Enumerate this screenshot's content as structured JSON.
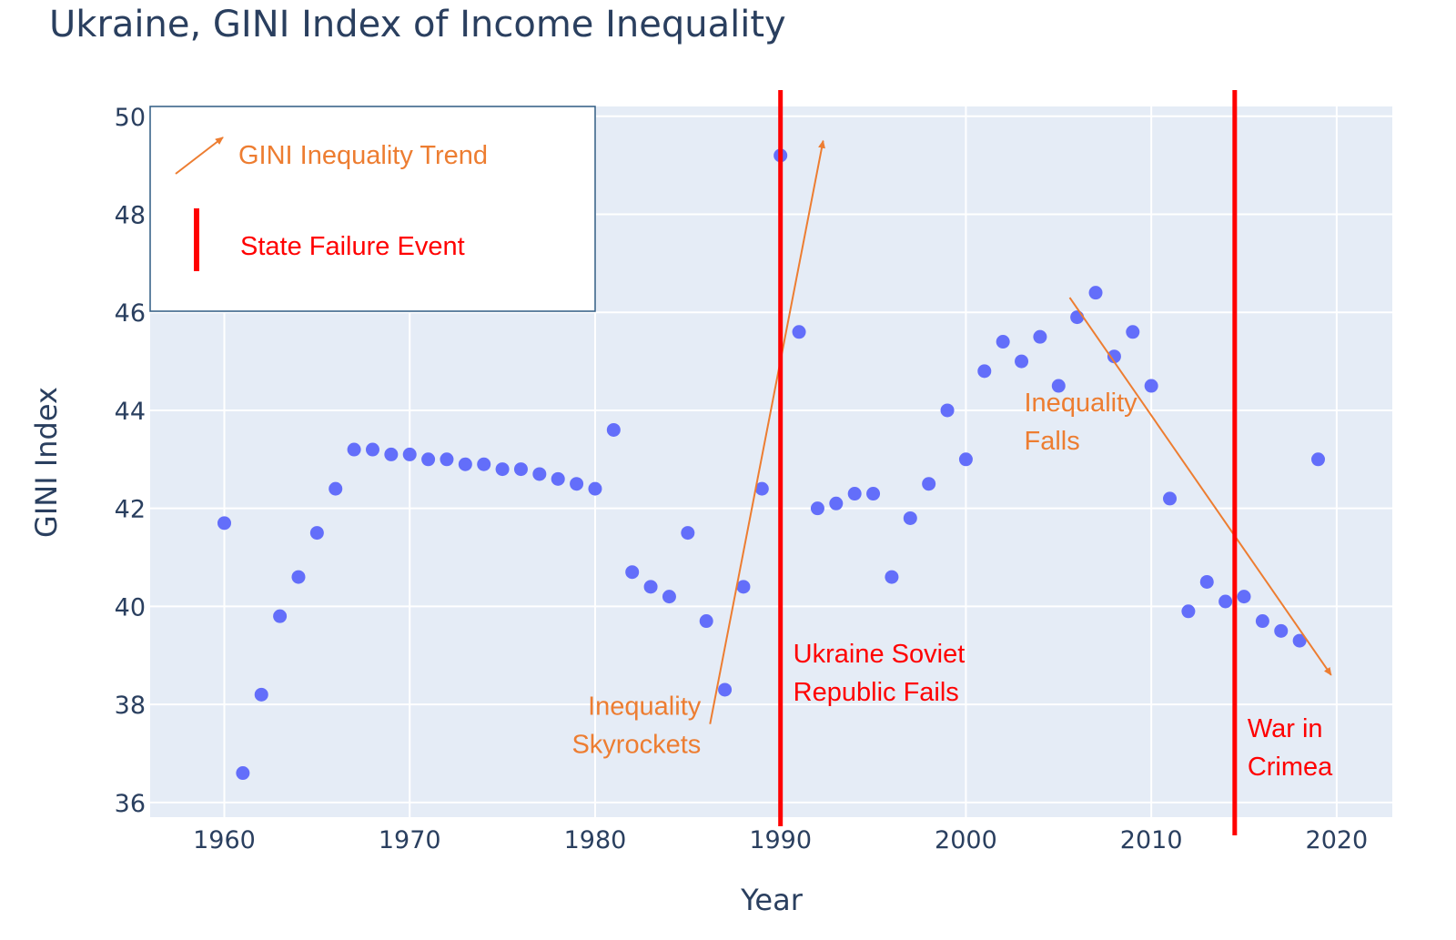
{
  "chart_data": {
    "type": "scatter",
    "title": "Ukraine, GINI Index of Income Inequality",
    "xlabel": "Year",
    "ylabel": "GINI Index",
    "xlim": [
      1956,
      2023
    ],
    "ylim": [
      35.7,
      50.2
    ],
    "x_ticks": [
      1960,
      1970,
      1980,
      1990,
      2000,
      2010,
      2020
    ],
    "y_ticks": [
      36,
      38,
      40,
      42,
      44,
      46,
      48,
      50
    ],
    "grid": true,
    "colors": {
      "marker": "#636efa",
      "plot_bg": "#e5ecf6",
      "trend": "#ed7d31",
      "event": "#ff0000",
      "text": "#2a3f5f"
    },
    "series": [
      {
        "x": [
          1960,
          1961,
          1962,
          1963,
          1964,
          1965,
          1966,
          1967,
          1968,
          1969,
          1970,
          1971,
          1972,
          1973,
          1974,
          1975,
          1976,
          1977,
          1978,
          1979,
          1980,
          1981,
          1982,
          1983,
          1984,
          1985,
          1986,
          1987,
          1988,
          1989,
          1990,
          1991,
          1992,
          1993,
          1994,
          1995,
          1996,
          1997,
          1998,
          1999,
          2000,
          2001,
          2002,
          2003,
          2004,
          2005,
          2006,
          2007,
          2008,
          2009,
          2010,
          2011,
          2012,
          2013,
          2014,
          2015,
          2016,
          2017,
          2018,
          2019
        ],
        "y": [
          41.7,
          36.6,
          38.2,
          39.8,
          40.6,
          41.5,
          42.4,
          43.2,
          43.2,
          43.1,
          43.1,
          43.0,
          43.0,
          42.9,
          42.9,
          42.8,
          42.8,
          42.7,
          42.6,
          42.5,
          42.4,
          43.6,
          40.7,
          40.4,
          40.2,
          41.5,
          39.7,
          38.3,
          40.4,
          42.4,
          49.2,
          45.6,
          42.0,
          42.1,
          42.3,
          42.3,
          40.6,
          41.8,
          42.5,
          44.0,
          43.0,
          44.8,
          45.4,
          45.0,
          45.5,
          44.5,
          45.9,
          46.4,
          45.1,
          45.6,
          44.5,
          42.2,
          39.9,
          40.5,
          40.1,
          40.2,
          39.7,
          39.5,
          39.3,
          43.0
        ]
      }
    ],
    "event_lines": [
      {
        "x": 1990.0,
        "label_lines": [
          "Ukraine Soviet",
          "Republic Fails"
        ]
      },
      {
        "x": 2014.5,
        "label_lines": [
          "War in",
          "Crimea"
        ]
      }
    ],
    "trend_arrows": [
      {
        "from": [
          1986.2,
          37.6
        ],
        "to": [
          1992.3,
          49.5
        ],
        "label_lines": [
          "Inequality",
          "Skyrockets"
        ]
      },
      {
        "from": [
          2005.6,
          46.3
        ],
        "to": [
          2019.7,
          38.6
        ],
        "label_lines": [
          "Inequality",
          "Falls"
        ]
      }
    ],
    "legend": {
      "placement": "top-left",
      "items": [
        {
          "symbol": "arrow",
          "label": "GINI Inequality Trend"
        },
        {
          "symbol": "bar",
          "label": "State Failure Event"
        }
      ]
    }
  }
}
